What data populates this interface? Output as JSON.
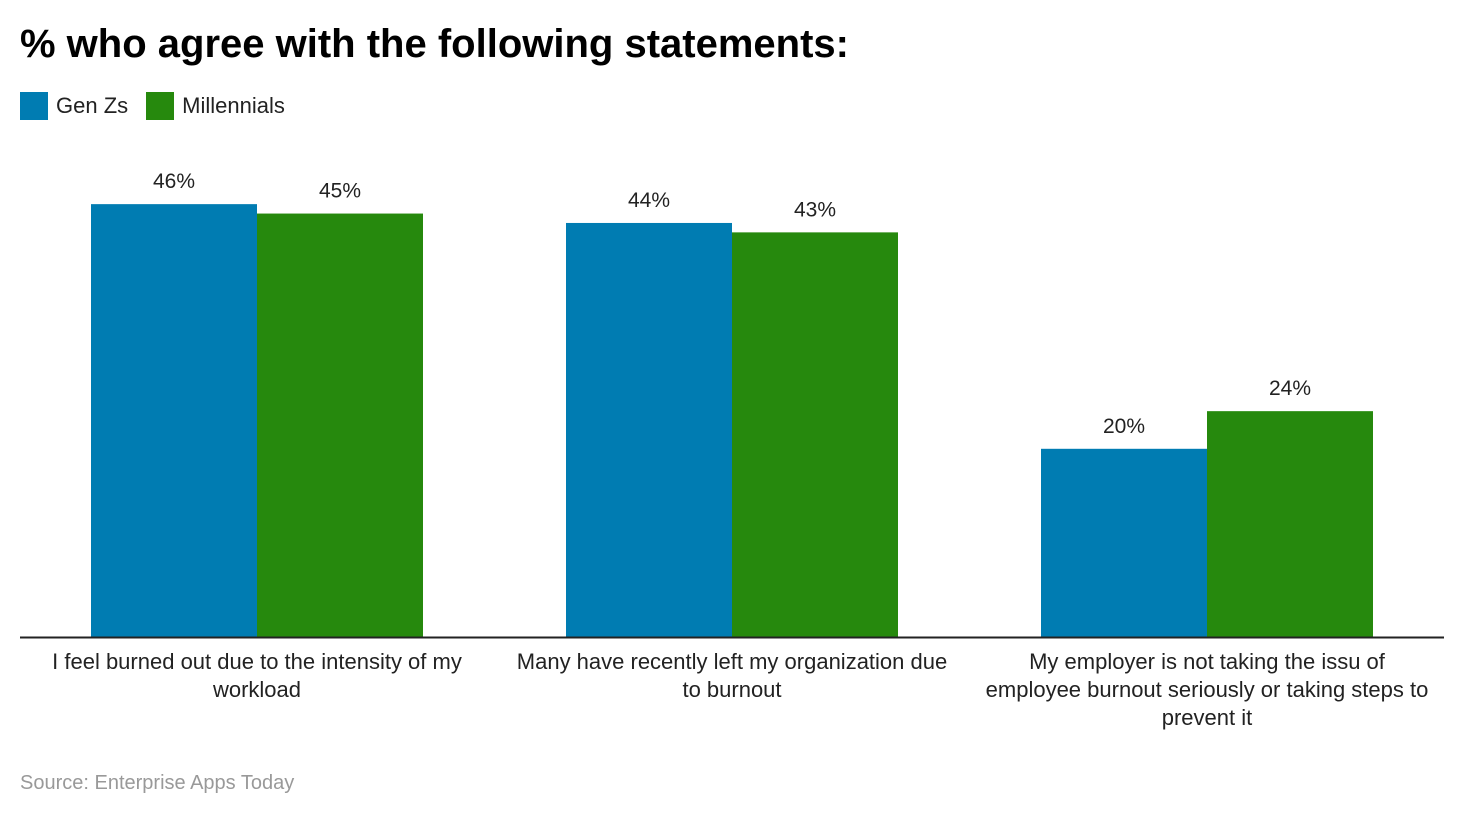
{
  "chart_data": {
    "type": "bar",
    "title": "% who agree with the following statements:",
    "categories": [
      "I feel burned out due to the intensity of my workload",
      "Many have recently left my organization due to burnout",
      "My employer is not taking the issu of employee burnout seriously or taking steps to prevent it"
    ],
    "series": [
      {
        "name": "Gen Zs",
        "values": [
          46,
          44,
          20
        ],
        "color": "#007cb2"
      },
      {
        "name": "Millennials",
        "values": [
          45,
          43,
          24
        ],
        "color": "#26890d"
      }
    ],
    "value_suffix": "%",
    "legend_position": "top-left",
    "grid": false
  },
  "source": "Source: Enterprise Apps Today"
}
